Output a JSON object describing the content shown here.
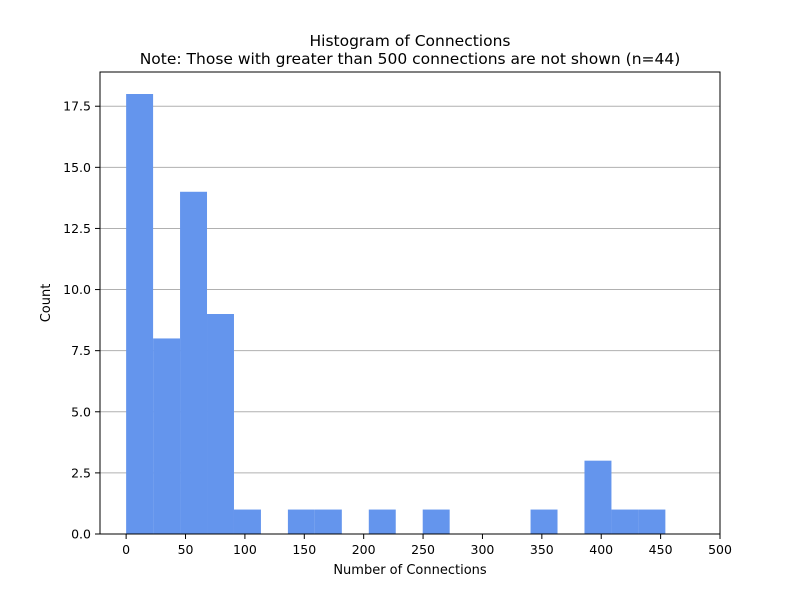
{
  "chart_data": {
    "type": "bar",
    "title": "Histogram of Connections",
    "subtitle": "Note: Those with greater than 500 connections are not shown (n=44)",
    "xlabel": "Number of Connections",
    "ylabel": "Count",
    "xlim": [
      -22,
      500
    ],
    "ylim": [
      0,
      18.9
    ],
    "xticks": [
      0,
      50,
      100,
      150,
      200,
      250,
      300,
      350,
      400,
      450,
      500
    ],
    "yticks": [
      0.0,
      2.5,
      5.0,
      7.5,
      10.0,
      12.5,
      15.0,
      17.5
    ],
    "ytick_labels": [
      "0.0",
      "2.5",
      "5.0",
      "7.5",
      "10.0",
      "12.5",
      "15.0",
      "17.5"
    ],
    "grid": "y",
    "bar_color": "#6495ED",
    "bins": [
      {
        "start": 0,
        "end": 22.7,
        "count": 18
      },
      {
        "start": 22.7,
        "end": 45.4,
        "count": 8
      },
      {
        "start": 45.4,
        "end": 68.1,
        "count": 14
      },
      {
        "start": 68.1,
        "end": 90.8,
        "count": 9
      },
      {
        "start": 90.8,
        "end": 113.5,
        "count": 1
      },
      {
        "start": 136.2,
        "end": 158.9,
        "count": 1
      },
      {
        "start": 158.9,
        "end": 181.6,
        "count": 1
      },
      {
        "start": 204.3,
        "end": 227.0,
        "count": 1
      },
      {
        "start": 249.7,
        "end": 272.4,
        "count": 1
      },
      {
        "start": 340.5,
        "end": 363.2,
        "count": 1
      },
      {
        "start": 385.9,
        "end": 408.6,
        "count": 3
      },
      {
        "start": 408.6,
        "end": 431.3,
        "count": 1
      },
      {
        "start": 431.3,
        "end": 454.0,
        "count": 1
      }
    ]
  }
}
